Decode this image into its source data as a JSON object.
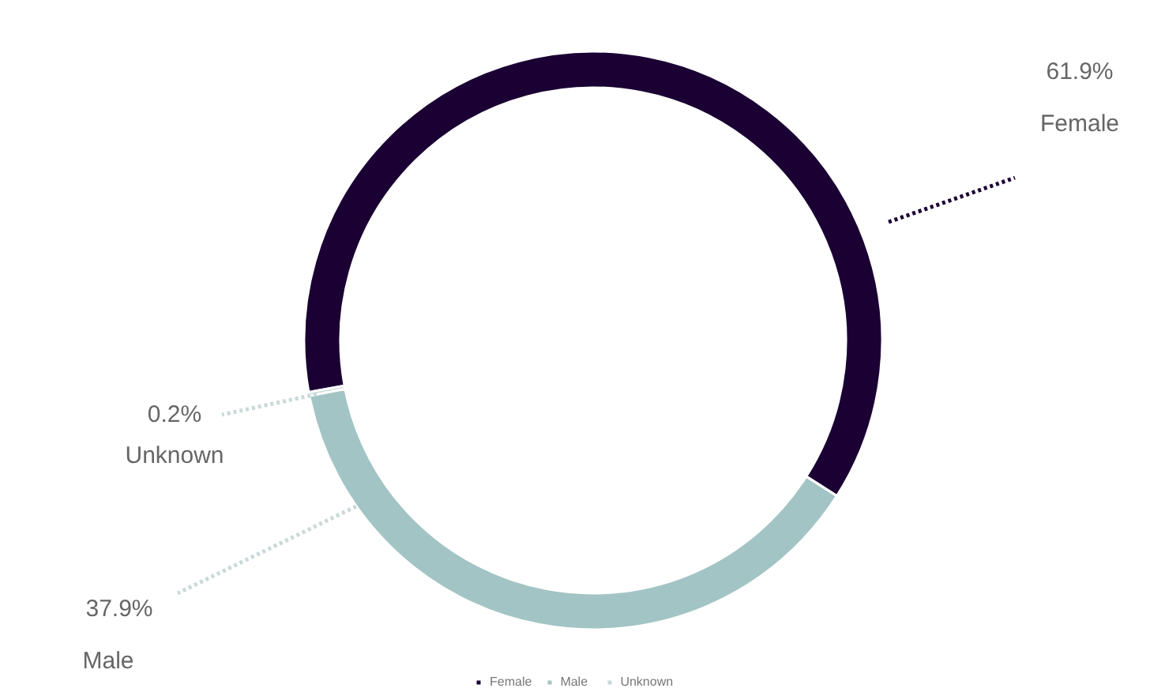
{
  "chart_data": {
    "type": "donut",
    "categories": [
      "Female",
      "Male",
      "Unknown"
    ],
    "values": [
      61.9,
      37.9,
      0.2
    ],
    "colors": [
      "#1a0033",
      "#a3c4c4",
      "#c9d9d9"
    ],
    "value_labels": [
      "61.9%",
      "37.9%",
      "0.2%"
    ],
    "legend": "bottom"
  }
}
